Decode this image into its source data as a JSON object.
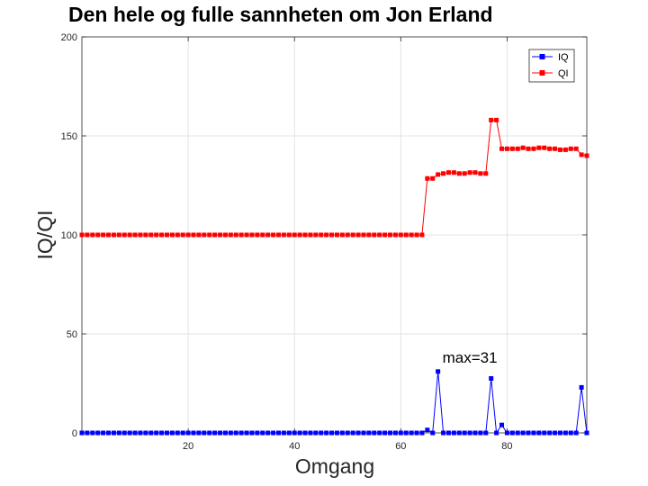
{
  "chart_data": {
    "type": "line",
    "title": "Den hele og fulle sannheten om Jon Erland",
    "xlabel": "Omgang",
    "ylabel": "IQ/QI",
    "xlim": [
      0,
      95
    ],
    "ylim": [
      0,
      200
    ],
    "xticks": [
      20,
      40,
      60,
      80
    ],
    "yticks": [
      0,
      50,
      100,
      150,
      200
    ],
    "grid": true,
    "legend_position": "top-right",
    "annotation": {
      "text": "max=31",
      "x": 67,
      "y": 31
    },
    "series": [
      {
        "name": "IQ",
        "color": "#0000ff",
        "marker": "square",
        "x": [
          0,
          1,
          2,
          3,
          4,
          5,
          6,
          7,
          8,
          9,
          10,
          11,
          12,
          13,
          14,
          15,
          16,
          17,
          18,
          19,
          20,
          21,
          22,
          23,
          24,
          25,
          26,
          27,
          28,
          29,
          30,
          31,
          32,
          33,
          34,
          35,
          36,
          37,
          38,
          39,
          40,
          41,
          42,
          43,
          44,
          45,
          46,
          47,
          48,
          49,
          50,
          51,
          52,
          53,
          54,
          55,
          56,
          57,
          58,
          59,
          60,
          61,
          62,
          63,
          64,
          65,
          66,
          67,
          68,
          69,
          70,
          71,
          72,
          73,
          74,
          75,
          76,
          77,
          78,
          79,
          80,
          81,
          82,
          83,
          84,
          85,
          86,
          87,
          88,
          89,
          90,
          91,
          92,
          93,
          94,
          95
        ],
        "values": [
          0,
          0,
          0,
          0,
          0,
          0,
          0,
          0,
          0,
          0,
          0,
          0,
          0,
          0,
          0,
          0,
          0,
          0,
          0,
          0,
          0,
          0,
          0,
          0,
          0,
          0,
          0,
          0,
          0,
          0,
          0,
          0,
          0,
          0,
          0,
          0,
          0,
          0,
          0,
          0,
          0,
          0,
          0,
          0,
          0,
          0,
          0,
          0,
          0,
          0,
          0,
          0,
          0,
          0,
          0,
          0,
          0,
          0,
          0,
          0,
          0,
          0,
          0,
          0,
          0,
          1.5,
          0,
          31,
          0,
          0,
          0,
          0,
          0,
          0,
          0,
          0,
          0,
          27.5,
          0,
          4,
          0,
          0,
          0,
          0,
          0,
          0,
          0,
          0,
          0,
          0,
          0,
          0,
          0,
          0,
          23,
          0
        ]
      },
      {
        "name": "QI",
        "color": "#ff0000",
        "marker": "square",
        "x": [
          0,
          1,
          2,
          3,
          4,
          5,
          6,
          7,
          8,
          9,
          10,
          11,
          12,
          13,
          14,
          15,
          16,
          17,
          18,
          19,
          20,
          21,
          22,
          23,
          24,
          25,
          26,
          27,
          28,
          29,
          30,
          31,
          32,
          33,
          34,
          35,
          36,
          37,
          38,
          39,
          40,
          41,
          42,
          43,
          44,
          45,
          46,
          47,
          48,
          49,
          50,
          51,
          52,
          53,
          54,
          55,
          56,
          57,
          58,
          59,
          60,
          61,
          62,
          63,
          64,
          65,
          66,
          67,
          68,
          69,
          70,
          71,
          72,
          73,
          74,
          75,
          76,
          77,
          78,
          79,
          80,
          81,
          82,
          83,
          84,
          85,
          86,
          87,
          88,
          89,
          90,
          91,
          92,
          93,
          94,
          95
        ],
        "values": [
          100,
          100,
          100,
          100,
          100,
          100,
          100,
          100,
          100,
          100,
          100,
          100,
          100,
          100,
          100,
          100,
          100,
          100,
          100,
          100,
          100,
          100,
          100,
          100,
          100,
          100,
          100,
          100,
          100,
          100,
          100,
          100,
          100,
          100,
          100,
          100,
          100,
          100,
          100,
          100,
          100,
          100,
          100,
          100,
          100,
          100,
          100,
          100,
          100,
          100,
          100,
          100,
          100,
          100,
          100,
          100,
          100,
          100,
          100,
          100,
          100,
          100,
          100,
          100,
          100,
          128.5,
          128.5,
          130.5,
          131,
          131.5,
          131.5,
          131,
          131,
          131.5,
          131.5,
          131,
          131,
          158,
          158,
          143.5,
          143.5,
          143.5,
          143.5,
          144,
          143.5,
          143.5,
          144,
          144,
          143.5,
          143.5,
          143,
          143,
          143.5,
          143.5,
          140.5,
          140
        ]
      }
    ]
  }
}
